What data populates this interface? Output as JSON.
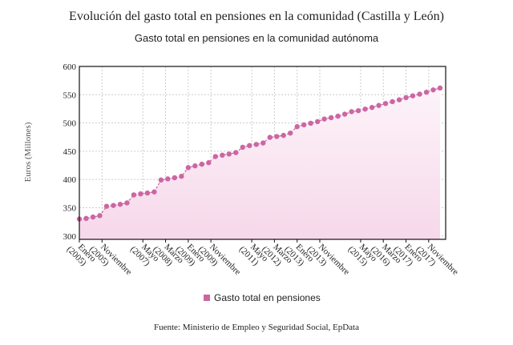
{
  "chart_data": {
    "type": "line",
    "title": "Evolución del gasto total en pensiones en la comunidad (Castilla y León)",
    "subtitle": "Gasto total en pensiones en la comunidad autónoma",
    "ylabel": "Euros (Millones)",
    "xlabel": "",
    "ylim": [
      294,
      600
    ],
    "yticks": [
      300,
      350,
      400,
      450,
      500,
      550,
      600
    ],
    "grid": true,
    "legend_position": "bottom",
    "x_start": "2005-01",
    "x_step_months": 3,
    "xticks": [
      {
        "label": "Enero (2005)",
        "month": 0
      },
      {
        "label": "Noviembre (2005)",
        "month": 10
      },
      {
        "label": "Mayo (2007)",
        "month": 28
      },
      {
        "label": "Marzo (2008)",
        "month": 38
      },
      {
        "label": "Enero (2009)",
        "month": 48
      },
      {
        "label": "Noviembre (2009)",
        "month": 58
      },
      {
        "label": "Mayo (2011)",
        "month": 76
      },
      {
        "label": "Marzo (2012)",
        "month": 86
      },
      {
        "label": "Enero (2013)",
        "month": 96
      },
      {
        "label": "Noviembre (2013)",
        "month": 106
      },
      {
        "label": "Mayo (2015)",
        "month": 124
      },
      {
        "label": "Marzo (2016)",
        "month": 134
      },
      {
        "label": "Enero (2017)",
        "month": 144
      },
      {
        "label": "Noviembre (2017)",
        "month": 154
      }
    ],
    "series": [
      {
        "name": "Gasto total en pensiones",
        "color": "#cc66a3",
        "values": [
          330,
          331,
          333.5,
          336,
          352.5,
          354,
          356,
          358.5,
          372.7,
          374.5,
          376,
          378,
          399,
          401,
          403,
          405.6,
          421,
          424,
          427,
          429.7,
          440.6,
          443,
          445,
          447.6,
          457,
          460,
          462,
          464.6,
          474.5,
          476,
          478,
          482,
          493.4,
          496.7,
          499.5,
          502.4,
          507,
          509.4,
          512,
          515.6,
          520,
          521.7,
          524.5,
          527.4,
          531,
          534.4,
          537.7,
          541,
          544.8,
          548,
          551,
          554.3,
          558.5,
          561.8
        ]
      }
    ]
  },
  "source": "Fuente: Ministerio de Empleo y Seguridad Social, EpData"
}
